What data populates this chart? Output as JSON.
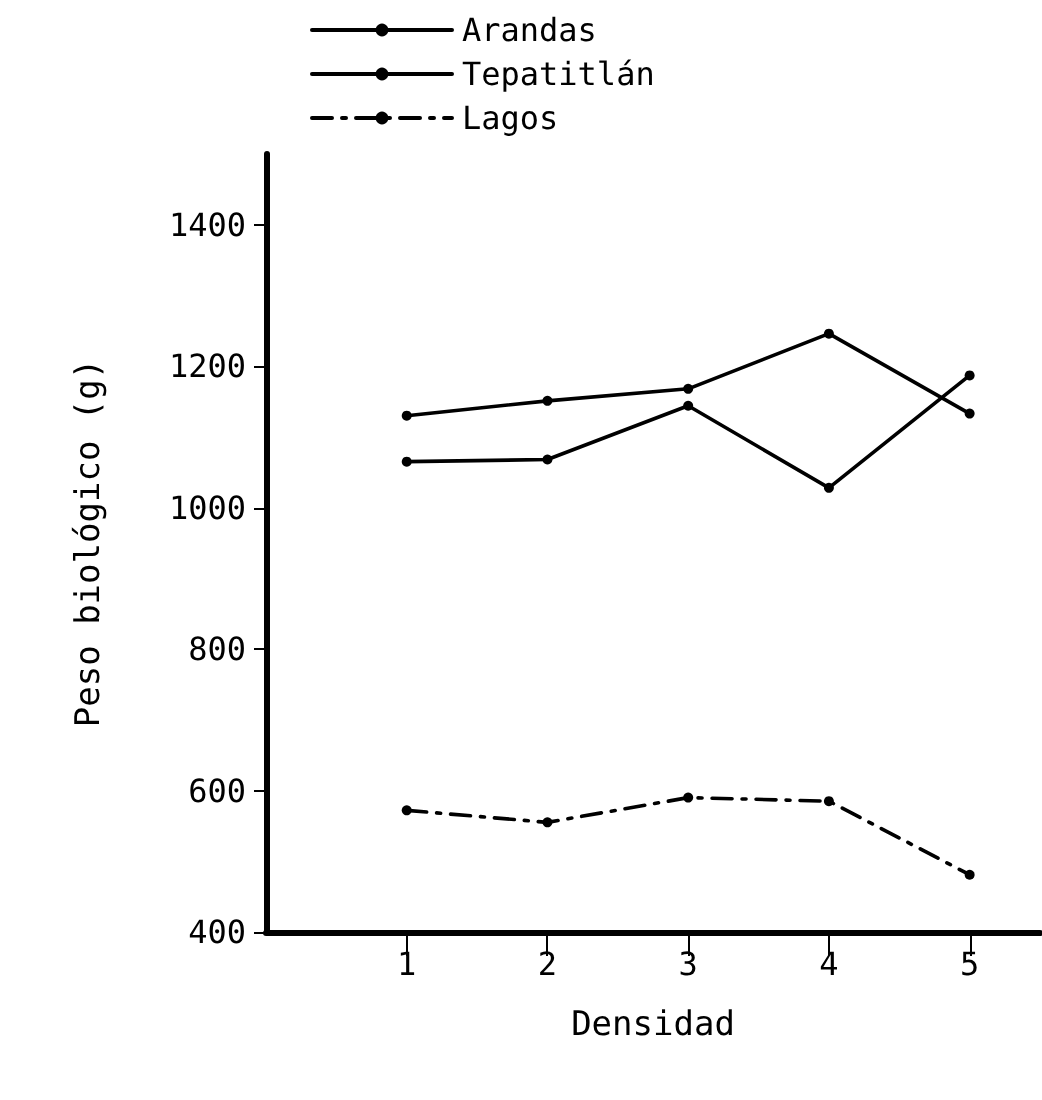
{
  "chart_data": {
    "type": "line",
    "xlabel": "Densidad",
    "ylabel": "Peso biológico (g)",
    "x": [
      1,
      2,
      3,
      4,
      5
    ],
    "xlim": [
      0,
      5.5
    ],
    "xticks": [
      1,
      2,
      3,
      4,
      5
    ],
    "ylim": [
      400,
      1500
    ],
    "yticks": [
      400,
      600,
      800,
      1000,
      1200,
      1400
    ],
    "series": [
      {
        "name": "Arandas",
        "color": "#000000",
        "values": [
          1130,
          1151,
          1168,
          1246,
          1133
        ],
        "line_style": "solid"
      },
      {
        "name": "Tepatitlán",
        "color": "#000000",
        "values": [
          1065,
          1068,
          1144,
          1028,
          1187
        ],
        "line_style": "solid"
      },
      {
        "name": "Lagos",
        "color": "#000000",
        "values": [
          572,
          555,
          590,
          585,
          481
        ],
        "line_style": "dashed"
      }
    ],
    "marker": "circle",
    "grid": false,
    "legend": "top"
  }
}
